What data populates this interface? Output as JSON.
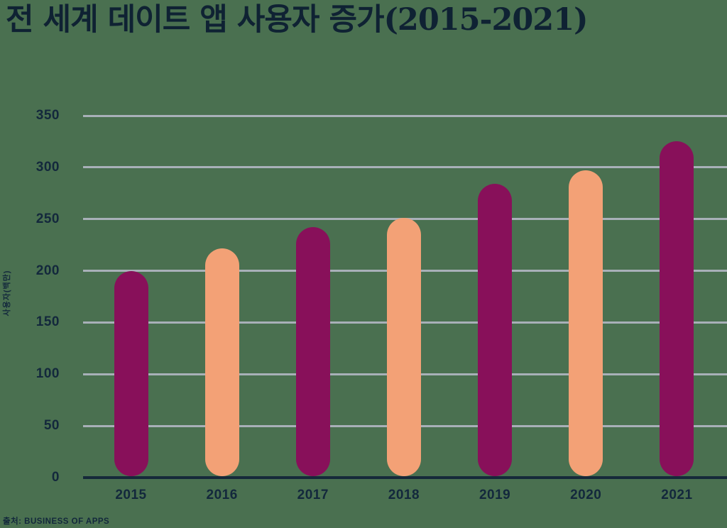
{
  "title": "전 세계 데이트 앱 사용자 증가(2015-2021)",
  "source": "출처: BUSINESS OF APPS",
  "chart_data": {
    "type": "bar",
    "title": "전 세계 데이트 앱 사용자 증가(2015-2021)",
    "categories": [
      "2015",
      "2016",
      "2017",
      "2018",
      "2019",
      "2020",
      "2021"
    ],
    "values": [
      198,
      220,
      241,
      250,
      283,
      296,
      324
    ],
    "xlabel": "",
    "ylabel": "사용자(백만)",
    "ylim": [
      0,
      350
    ],
    "yticks": [
      0,
      50,
      100,
      150,
      200,
      250,
      300,
      350
    ],
    "grid": true,
    "legend": false,
    "bar_colors": [
      "#88105A",
      "#F3A176",
      "#88105A",
      "#F3A176",
      "#88105A",
      "#F3A176",
      "#88105A"
    ],
    "source_caption": "출처: BUSINESS OF APPS"
  },
  "colors": {
    "background": "#4A7050",
    "bar_magenta": "#88105A",
    "bar_peach": "#F3A176",
    "text_navy": "#13283C",
    "title_navy": "#0F2233",
    "gridline_gray": "#A8B0B8",
    "axis_navy": "#16293A"
  }
}
